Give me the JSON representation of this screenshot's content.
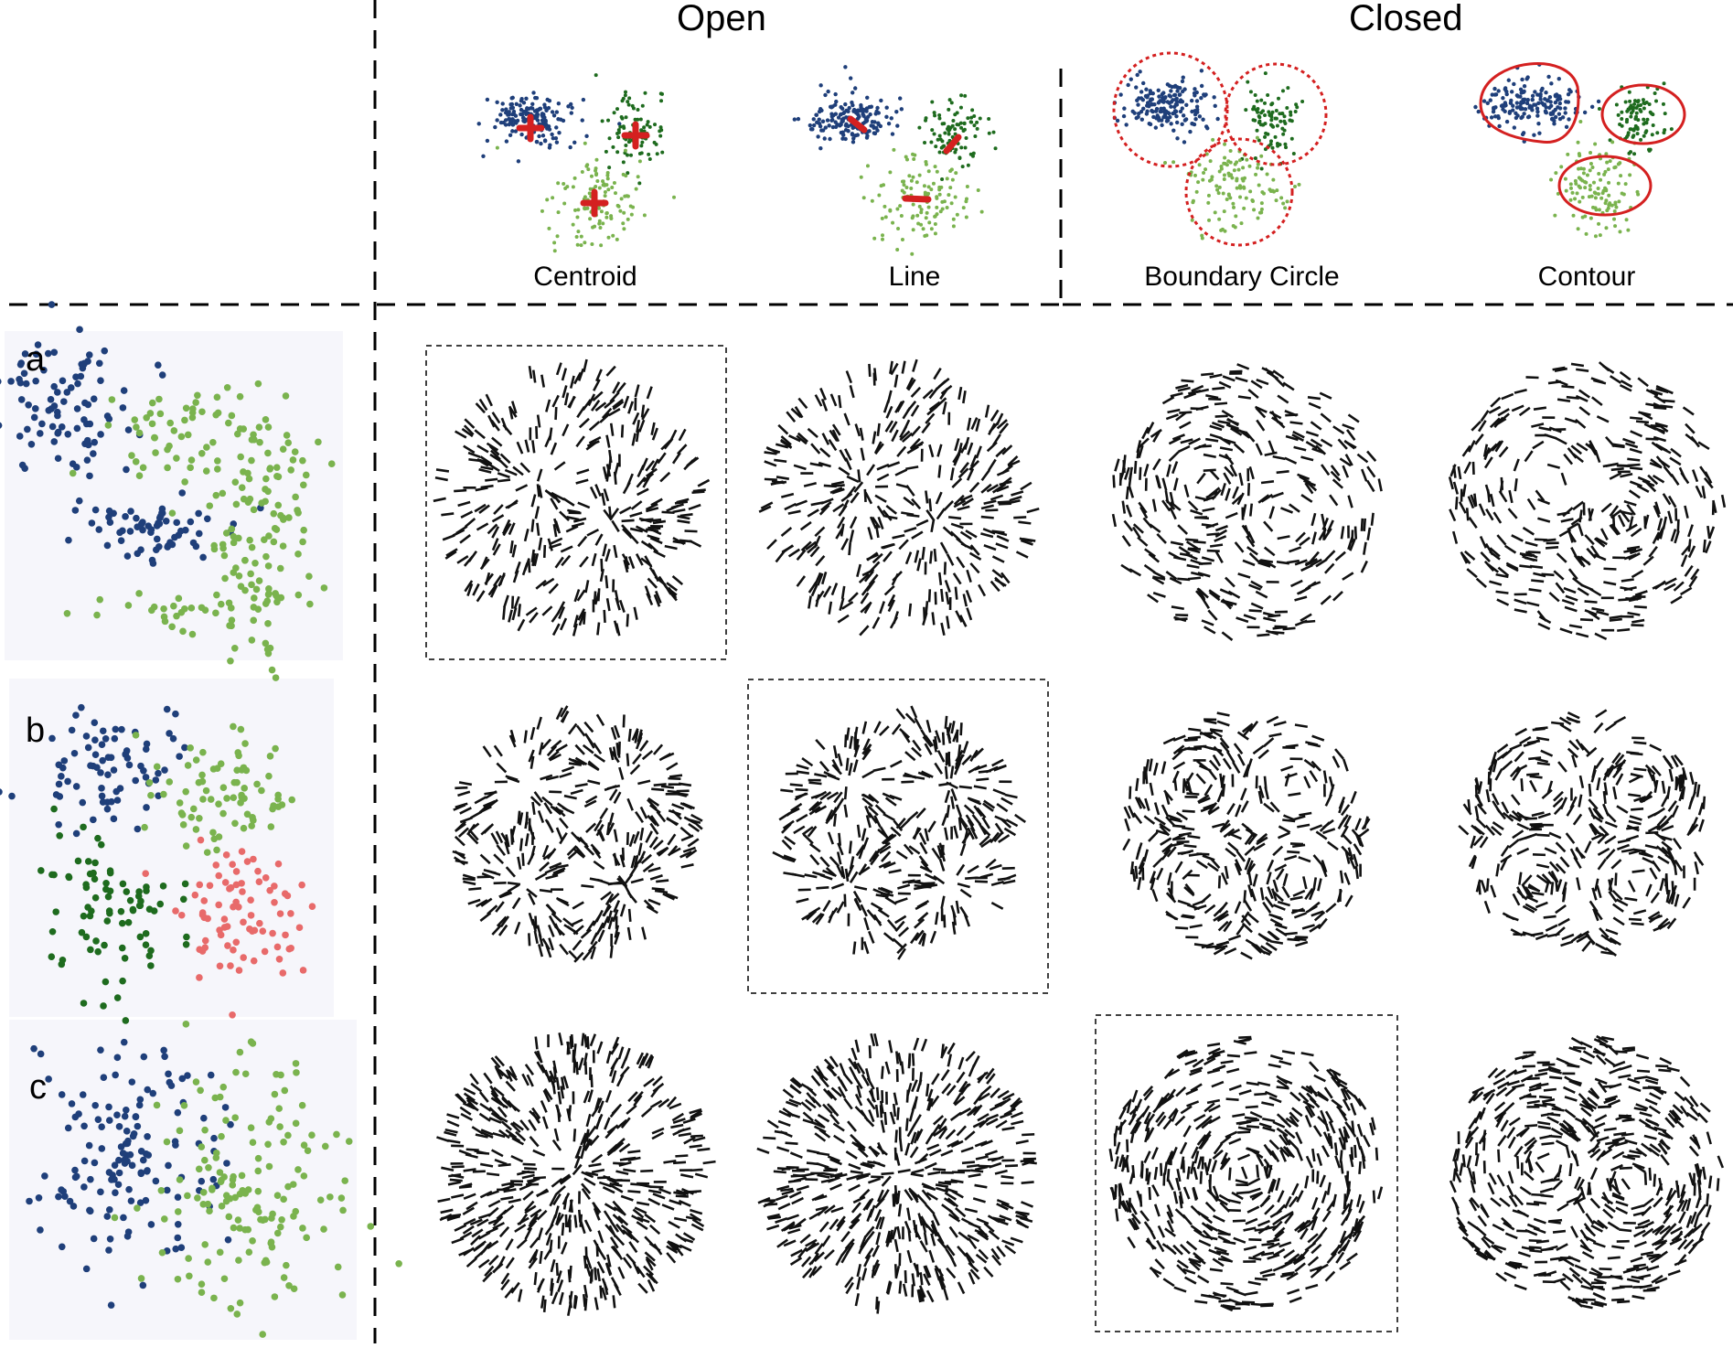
{
  "header": {
    "open": "Open",
    "closed": "Closed"
  },
  "methods": [
    "Centroid",
    "Line",
    "Boundary Circle",
    "Contour"
  ],
  "rows": [
    {
      "label": "a",
      "highlight_col": 0
    },
    {
      "label": "b",
      "highlight_col": 1
    },
    {
      "label": "c",
      "highlight_col": 2
    }
  ],
  "colors": {
    "blue": "#1f3f7a",
    "light_green": "#7ab34e",
    "dark_green": "#1e6b1e",
    "red_cluster": "#e86a6a",
    "marker_red": "#d42020",
    "arrow": "#111111",
    "panel_bg": "#f6f6fb"
  },
  "icons": {
    "arrow_glyph": "double-headed-arrow-icon"
  }
}
